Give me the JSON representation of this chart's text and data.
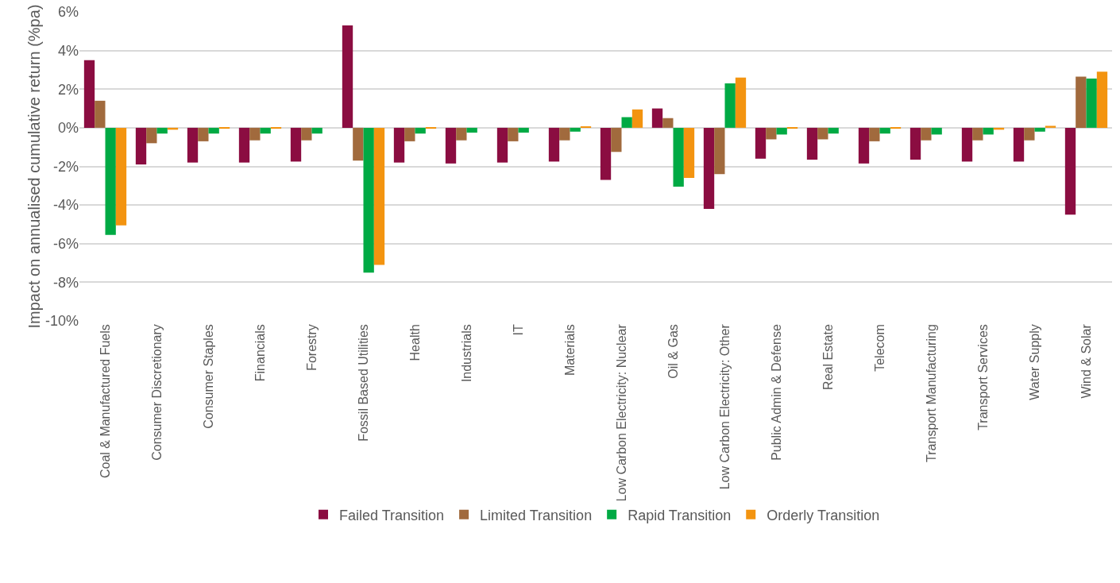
{
  "chart_data": {
    "type": "bar",
    "ylabel": "Impact on annualised cumulative return (%pa)",
    "categories": [
      "Coal & Manufactured Fuels",
      "Consumer Discretionary",
      "Consumer Staples",
      "Financials",
      "Forestry",
      "Fossil Based Utilities",
      "Health",
      "Industrials",
      "IT",
      "Materials",
      "Low Carbon Electricity: Nuclear",
      "Oil & Gas",
      "Low Carbon Electricity: Other",
      "Public Admin & Defense",
      "Real Estate",
      "Telecom",
      "Transport Manufacturing",
      "Transport Services",
      "Water Supply",
      "Wind & Solar"
    ],
    "series": [
      {
        "name": "Failed Transition",
        "color": "#8b0d41",
        "values": [
          3.5,
          -1.9,
          -1.8,
          -1.8,
          -1.75,
          5.3,
          -1.8,
          -1.85,
          -1.8,
          -1.75,
          -2.7,
          1.0,
          -4.2,
          -1.6,
          -1.65,
          -1.85,
          -1.65,
          -1.75,
          -1.75,
          -4.5
        ]
      },
      {
        "name": "Limited Transition",
        "color": "#a16a3d",
        "values": [
          1.4,
          -0.8,
          -0.7,
          -0.65,
          -0.65,
          -1.7,
          -0.7,
          -0.65,
          -0.7,
          -0.65,
          -1.25,
          0.5,
          -2.4,
          -0.6,
          -0.6,
          -0.7,
          -0.65,
          -0.65,
          -0.65,
          2.65
        ]
      },
      {
        "name": "Rapid Transition",
        "color": "#00aa44",
        "values": [
          -5.55,
          -0.3,
          -0.3,
          -0.3,
          -0.3,
          -7.5,
          -0.3,
          -0.25,
          -0.25,
          -0.2,
          0.55,
          -3.05,
          2.3,
          -0.35,
          -0.3,
          -0.3,
          -0.35,
          -0.35,
          -0.2,
          2.55
        ]
      },
      {
        "name": "Orderly Transition",
        "color": "#f39410",
        "values": [
          -5.05,
          -0.1,
          -0.05,
          -0.05,
          null,
          -7.1,
          -0.05,
          null,
          null,
          0.05,
          0.95,
          -2.6,
          2.6,
          -0.05,
          null,
          -0.05,
          null,
          -0.1,
          0.1,
          2.9
        ]
      }
    ],
    "ylim": [
      -10,
      6
    ],
    "yticks": [
      {
        "value": -10,
        "label": "-10%"
      },
      {
        "value": -8,
        "label": "-8%"
      },
      {
        "value": -6,
        "label": "-6%"
      },
      {
        "value": -4,
        "label": "-4%"
      },
      {
        "value": -2,
        "label": "-2%"
      },
      {
        "value": 0,
        "label": "0%"
      },
      {
        "value": 2,
        "label": "2%"
      },
      {
        "value": 4,
        "label": "4%"
      },
      {
        "value": 6,
        "label": "6%"
      }
    ],
    "grid": "y",
    "legend": "bottom"
  }
}
